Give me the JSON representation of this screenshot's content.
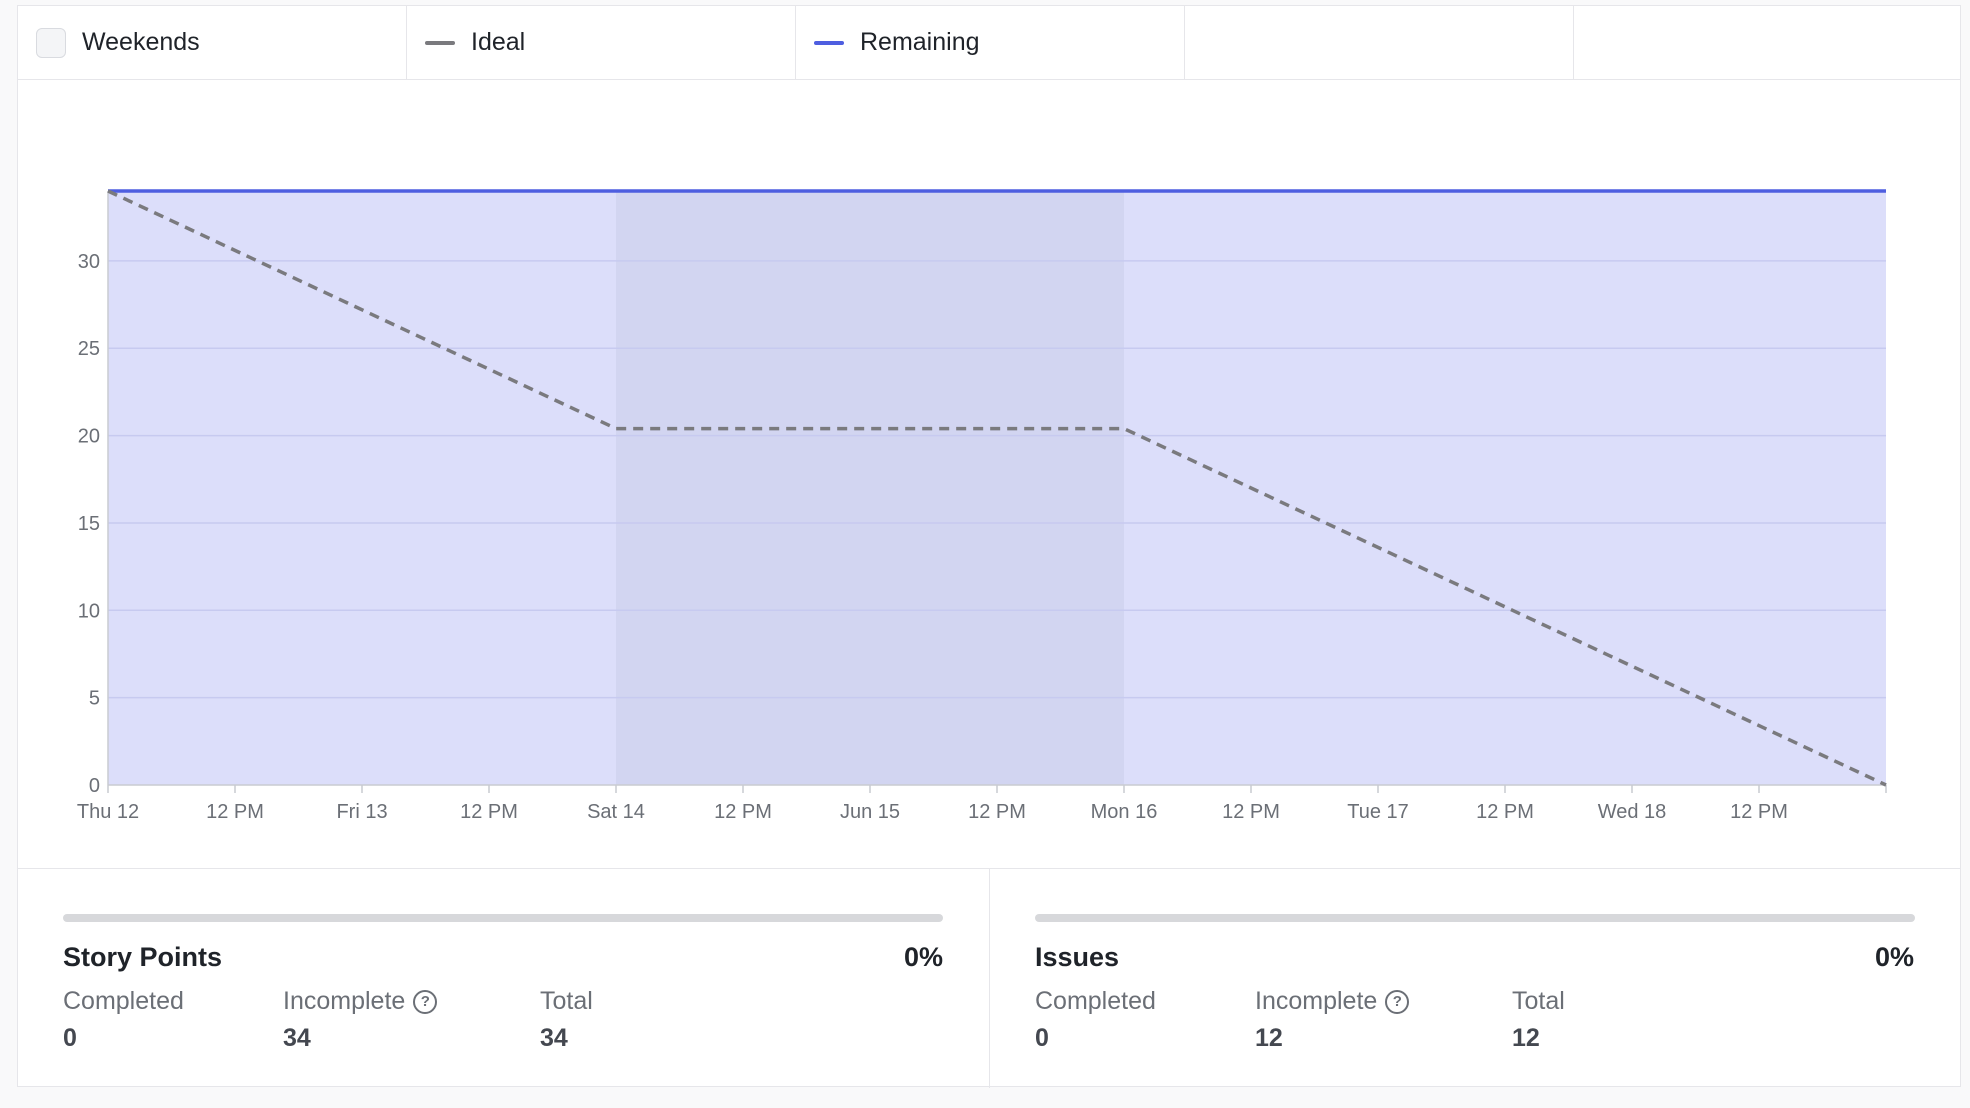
{
  "legend": {
    "weekends_label": "Weekends",
    "ideal_label": "Ideal",
    "remaining_label": "Remaining",
    "ideal_color": "#7a7a7e",
    "remaining_color": "#4e5ee0"
  },
  "chart_data": {
    "type": "area",
    "title": "",
    "xlabel": "",
    "ylabel": "",
    "ylim": [
      0,
      34
    ],
    "y_ticks": [
      0,
      5,
      10,
      15,
      20,
      25,
      30
    ],
    "x_range": [
      "Thu 12 00:00",
      "Wed 18 24:00"
    ],
    "x_ticks": [
      "Thu 12",
      "12 PM",
      "Fri 13",
      "12 PM",
      "Sat 14",
      "12 PM",
      "Jun 15",
      "12 PM",
      "Mon 16",
      "12 PM",
      "Tue 17",
      "12 PM",
      "Wed 18",
      "12 PM"
    ],
    "grid": true,
    "legend_position": "top",
    "weekend_span": [
      "Sat 14 00:00",
      "Mon 16 00:00"
    ],
    "series": [
      {
        "name": "Remaining",
        "style": "solid-area",
        "x": [
          "Thu 12 00:00",
          "Wed 18 24:00"
        ],
        "values": [
          34,
          34
        ]
      },
      {
        "name": "Ideal",
        "style": "dashed",
        "x": [
          "Thu 12 00:00",
          "Sat 14 00:00",
          "Mon 16 00:00",
          "Wed 18 24:00"
        ],
        "values": [
          34,
          20.4,
          20.4,
          0
        ]
      }
    ]
  },
  "stats": [
    {
      "title": "Story Points",
      "percent": "0%",
      "progress": 0,
      "completed_label": "Completed",
      "completed_value": "0",
      "incomplete_label": "Incomplete",
      "incomplete_value": "34",
      "total_label": "Total",
      "total_value": "34"
    },
    {
      "title": "Issues",
      "percent": "0%",
      "progress": 0,
      "completed_label": "Completed",
      "completed_value": "0",
      "incomplete_label": "Incomplete",
      "incomplete_value": "12",
      "total_label": "Total",
      "total_value": "12"
    }
  ],
  "icons": {
    "help": "question-circle-icon"
  }
}
